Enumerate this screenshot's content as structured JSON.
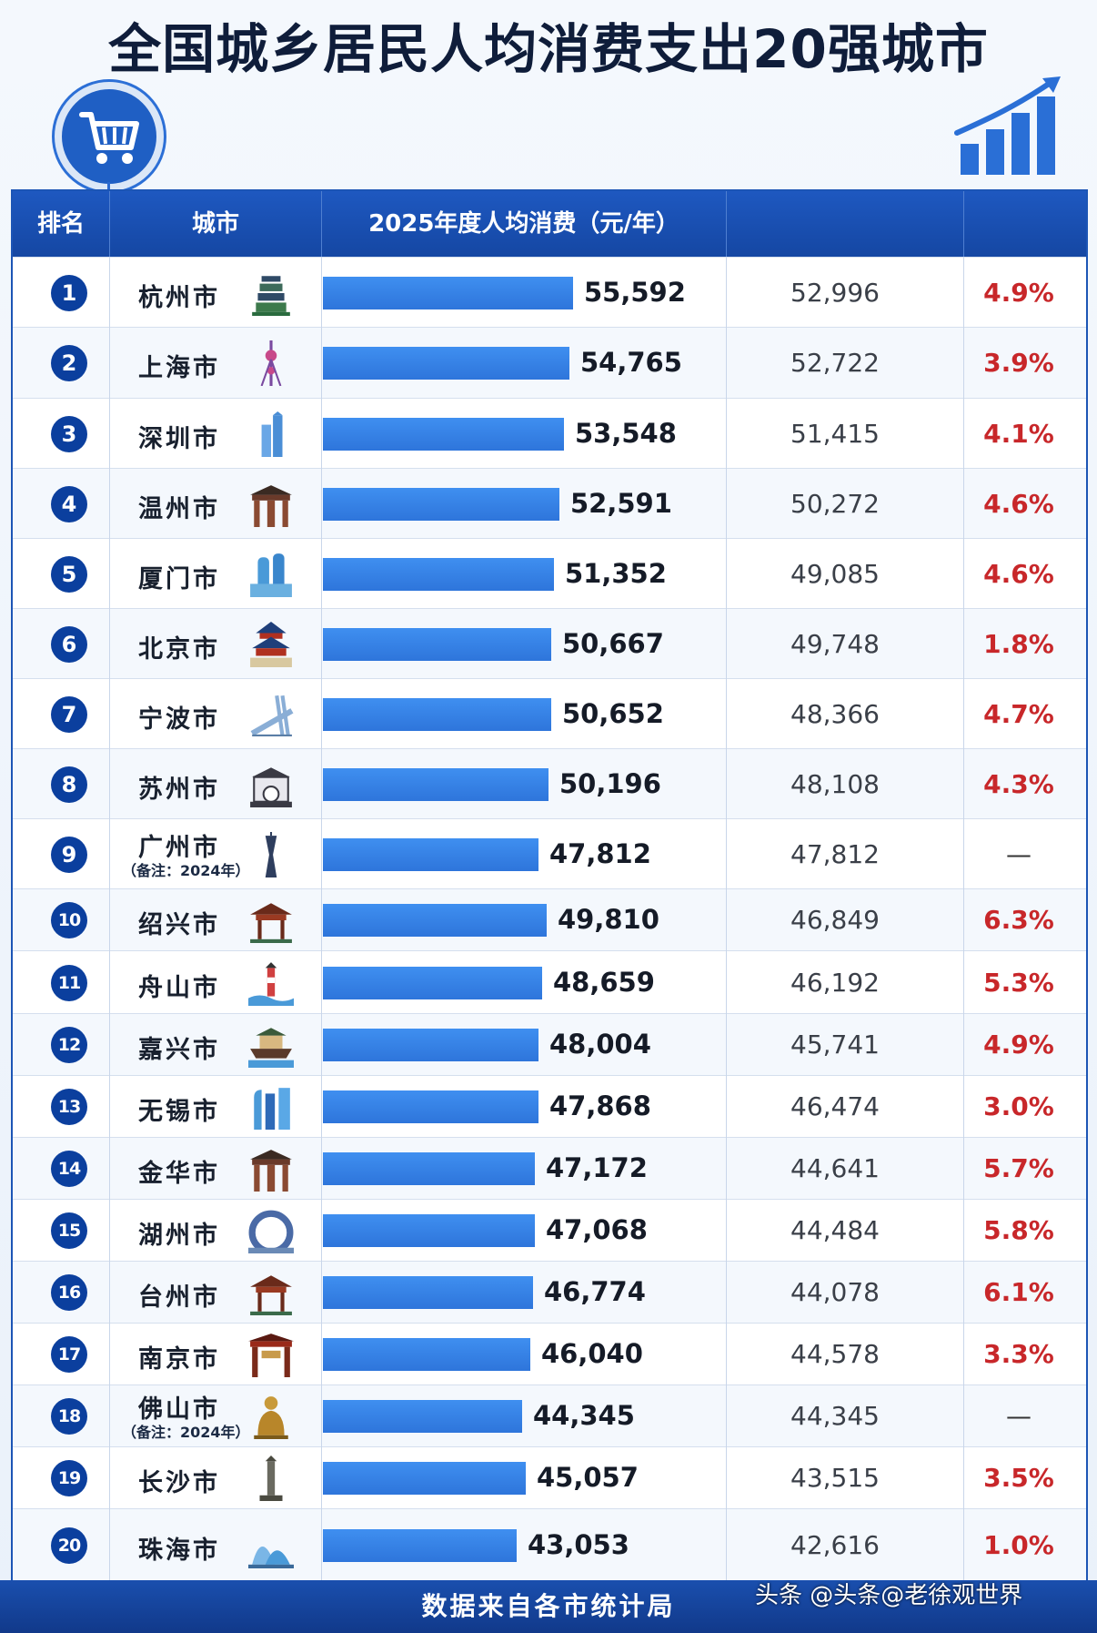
{
  "title": "全国城乡居民人均消费支出20强城市",
  "header": {
    "rank": "排名",
    "city": "城市",
    "value": "2025年度人均消费（元/年）",
    "prev": "",
    "growth": ""
  },
  "colors": {
    "header_bg": "#1e58c0",
    "bar": "#3a87ec",
    "rank_circle": "#0b3f9e",
    "growth": "#c8272a",
    "footer_bg": "#163f96"
  },
  "icons": {
    "cart": "shopping-cart-icon",
    "growth_chart": "growth-bar-chart-icon"
  },
  "chart_data": {
    "type": "bar",
    "title": "全国城乡居民人均消费支出20强城市",
    "ylabel": "2025年度人均消费（元/年）",
    "categories": [
      "杭州市",
      "上海市",
      "深圳市",
      "温州市",
      "厦门市",
      "北京市",
      "宁波市",
      "苏州市",
      "广州市",
      "绍兴市",
      "舟山市",
      "嘉兴市",
      "无锡市",
      "金华市",
      "湖州市",
      "台州市",
      "南京市",
      "佛山市",
      "长沙市",
      "珠海市"
    ],
    "series": [
      {
        "values": [
          55592,
          54765,
          53548,
          52591,
          51352,
          50667,
          50652,
          50196,
          47812,
          49810,
          48659,
          48004,
          47868,
          47172,
          47068,
          46774,
          46040,
          44345,
          45057,
          43053
        ]
      }
    ],
    "ylim": [
      0,
      55592
    ]
  },
  "rows": [
    {
      "rank": "1",
      "city": "杭州市",
      "note": "",
      "value": "55,592",
      "prev": "52,996",
      "growth": "4.9%",
      "landmark": "pagoda-icon"
    },
    {
      "rank": "2",
      "city": "上海市",
      "note": "",
      "value": "54,765",
      "prev": "52,722",
      "growth": "3.9%",
      "landmark": "tv-tower-icon"
    },
    {
      "rank": "3",
      "city": "深圳市",
      "note": "",
      "value": "53,548",
      "prev": "51,415",
      "growth": "4.1%",
      "landmark": "skyscraper-icon"
    },
    {
      "rank": "4",
      "city": "温州市",
      "note": "",
      "value": "52,591",
      "prev": "50,272",
      "growth": "4.6%",
      "landmark": "archway-icon"
    },
    {
      "rank": "5",
      "city": "厦门市",
      "note": "",
      "value": "51,352",
      "prev": "49,085",
      "growth": "4.6%",
      "landmark": "twin-towers-icon"
    },
    {
      "rank": "6",
      "city": "北京市",
      "note": "",
      "value": "50,667",
      "prev": "49,748",
      "growth": "1.8%",
      "landmark": "temple-of-heaven-icon"
    },
    {
      "rank": "7",
      "city": "宁波市",
      "note": "",
      "value": "50,652",
      "prev": "48,366",
      "growth": "4.7%",
      "landmark": "bridge-icon"
    },
    {
      "rank": "8",
      "city": "苏州市",
      "note": "",
      "value": "50,196",
      "prev": "48,108",
      "growth": "4.3%",
      "landmark": "garden-pavilion-icon"
    },
    {
      "rank": "9",
      "city": "广州市",
      "note": "（备注：2024年）",
      "value": "47,812",
      "prev": "47,812",
      "growth": "—",
      "landmark": "canton-tower-icon"
    },
    {
      "rank": "10",
      "city": "绍兴市",
      "note": "",
      "value": "49,810",
      "prev": "46,849",
      "growth": "6.3%",
      "landmark": "pavilion-icon"
    },
    {
      "rank": "11",
      "city": "舟山市",
      "note": "",
      "value": "48,659",
      "prev": "46,192",
      "growth": "5.3%",
      "landmark": "lighthouse-icon"
    },
    {
      "rank": "12",
      "city": "嘉兴市",
      "note": "",
      "value": "48,004",
      "prev": "45,741",
      "growth": "4.9%",
      "landmark": "red-boat-icon"
    },
    {
      "rank": "13",
      "city": "无锡市",
      "note": "",
      "value": "47,868",
      "prev": "46,474",
      "growth": "3.0%",
      "landmark": "modern-building-icon"
    },
    {
      "rank": "14",
      "city": "金华市",
      "note": "",
      "value": "47,172",
      "prev": "44,641",
      "growth": "5.7%",
      "landmark": "archway-icon"
    },
    {
      "rank": "15",
      "city": "湖州市",
      "note": "",
      "value": "47,068",
      "prev": "44,484",
      "growth": "5.8%",
      "landmark": "ring-hotel-icon"
    },
    {
      "rank": "16",
      "city": "台州市",
      "note": "",
      "value": "46,774",
      "prev": "44,078",
      "growth": "6.1%",
      "landmark": "pavilion-icon"
    },
    {
      "rank": "17",
      "city": "南京市",
      "note": "",
      "value": "46,040",
      "prev": "44,578",
      "growth": "3.3%",
      "landmark": "gate-icon"
    },
    {
      "rank": "18",
      "city": "佛山市",
      "note": "（备注：2024年）",
      "value": "44,345",
      "prev": "44,345",
      "growth": "—",
      "landmark": "buddha-statue-icon"
    },
    {
      "rank": "19",
      "city": "长沙市",
      "note": "",
      "value": "45,057",
      "prev": "43,515",
      "growth": "3.5%",
      "landmark": "monument-icon"
    },
    {
      "rank": "20",
      "city": "珠海市",
      "note": "",
      "value": "43,053",
      "prev": "42,616",
      "growth": "1.0%",
      "landmark": "opera-house-icon"
    }
  ],
  "footer": {
    "source": "数据来自各市统计局"
  },
  "watermark": "头条 @头条@老徐观世界"
}
